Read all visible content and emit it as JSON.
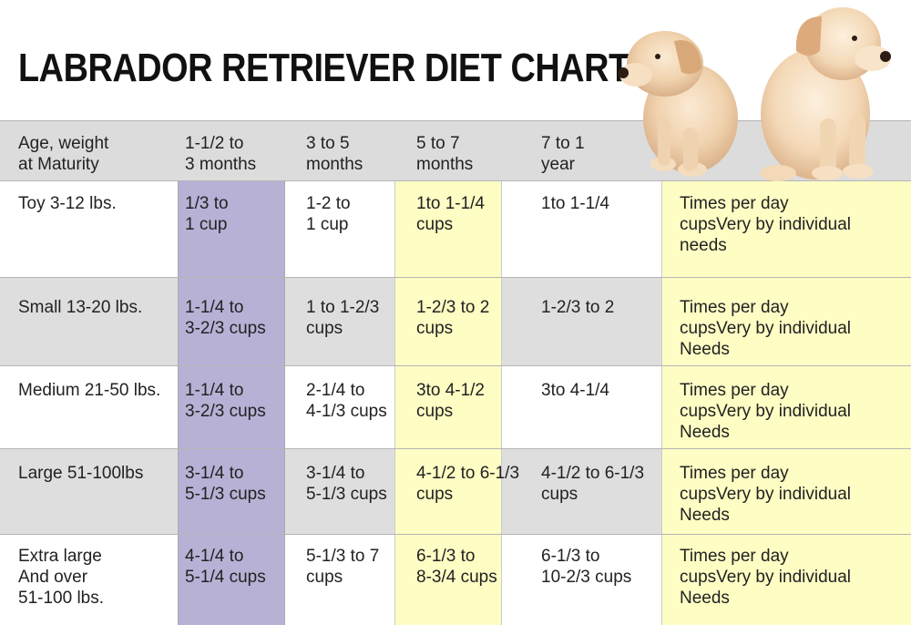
{
  "title": "LABRADOR RETRIEVER DIET CHART",
  "chart_data": {
    "type": "table",
    "columns": [
      [
        "Age, weight",
        "at Maturity"
      ],
      [
        "1-1/2 to",
        "3 months"
      ],
      [
        "3 to 5",
        "months"
      ],
      [
        "5 to 7",
        "months"
      ],
      [
        "7 to 1",
        "year"
      ],
      []
    ],
    "rows": [
      {
        "label": [
          "Toy 3-12 lbs."
        ],
        "cells": [
          [
            "1/3 to",
            "1 cup"
          ],
          [
            "1-2 to",
            "1 cup"
          ],
          [
            "1to 1-1/4",
            "cups"
          ],
          [
            "1to 1-1/4"
          ],
          [
            "Times per day",
            "cupsVery by individual",
            "needs"
          ]
        ]
      },
      {
        "label": [
          "Small 13-20 lbs."
        ],
        "cells": [
          [
            "1-1/4 to",
            "3-2/3 cups"
          ],
          [
            "1 to 1-2/3",
            "cups"
          ],
          [
            "1-2/3 to 2",
            "cups"
          ],
          [
            "1-2/3 to 2"
          ],
          [
            "Times per day",
            "cupsVery by individual",
            "Needs"
          ]
        ]
      },
      {
        "label": [
          "Medium 21-50 lbs."
        ],
        "cells": [
          [
            "1-1/4 to",
            "3-2/3 cups"
          ],
          [
            "2-1/4 to",
            "4-1/3 cups"
          ],
          [
            "3to 4-1/2",
            "cups"
          ],
          [
            "3to 4-1/4"
          ],
          [
            "Times per day",
            "cupsVery by individual",
            "Needs"
          ]
        ]
      },
      {
        "label": [
          "Large 51-100lbs"
        ],
        "cells": [
          [
            "3-1/4 to",
            "5-1/3 cups"
          ],
          [
            "3-1/4 to",
            "5-1/3 cups"
          ],
          [
            "4-1/2 to 6-1/3",
            "cups"
          ],
          [
            "4-1/2 to 6-1/3",
            "cups"
          ],
          [
            "Times per day",
            "cupsVery by individual",
            "Needs"
          ]
        ]
      },
      {
        "label": [
          "Extra large",
          "And over",
          "51-100 lbs."
        ],
        "cells": [
          [
            "4-1/4 to",
            "5-1/4 cups"
          ],
          [
            "5-1/3 to 7",
            "cups"
          ],
          [
            "6-1/3 to",
            "8-3/4 cups"
          ],
          [
            "6-1/3 to",
            "10-2/3 cups"
          ],
          [
            "Times per day",
            "cupsVery by individual",
            "Needs"
          ]
        ]
      }
    ]
  },
  "colors": {
    "header_band": "#dcdcdc",
    "alt_row": "#dedede",
    "highlight_purple": "#b8b1d6",
    "highlight_yellow": "#fefdc4"
  },
  "image": {
    "icon": "labrador-puppies-illustration"
  }
}
